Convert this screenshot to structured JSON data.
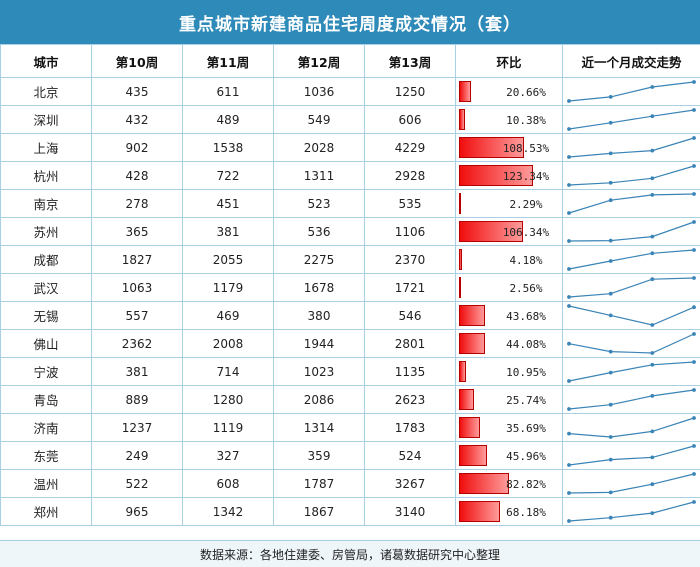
{
  "title": "重点城市新建商品住宅周度成交情况（套）",
  "footer": "数据来源：各地住建委、房管局，诸葛数据研究中心整理",
  "colors": {
    "header": "#2e8ab8",
    "bar": "#f00e0e",
    "spark": "#3a84b6",
    "grid": "#a9cfe3"
  },
  "chart_data": {
    "type": "table",
    "columns": [
      "城市",
      "第10周",
      "第11周",
      "第12周",
      "第13周",
      "环比",
      "近一个月成交走势"
    ],
    "rows": [
      {
        "city": "北京",
        "w10": 435,
        "w11": 611,
        "w12": 1036,
        "w13": 1250,
        "chg": "20.66%"
      },
      {
        "city": "深圳",
        "w10": 432,
        "w11": 489,
        "w12": 549,
        "w13": 606,
        "chg": "10.38%"
      },
      {
        "city": "上海",
        "w10": 902,
        "w11": 1538,
        "w12": 2028,
        "w13": 4229,
        "chg": "108.53%"
      },
      {
        "city": "杭州",
        "w10": 428,
        "w11": 722,
        "w12": 1311,
        "w13": 2928,
        "chg": "123.34%"
      },
      {
        "city": "南京",
        "w10": 278,
        "w11": 451,
        "w12": 523,
        "w13": 535,
        "chg": "2.29%"
      },
      {
        "city": "苏州",
        "w10": 365,
        "w11": 381,
        "w12": 536,
        "w13": 1106,
        "chg": "106.34%"
      },
      {
        "city": "成都",
        "w10": 1827,
        "w11": 2055,
        "w12": 2275,
        "w13": 2370,
        "chg": "4.18%"
      },
      {
        "city": "武汉",
        "w10": 1063,
        "w11": 1179,
        "w12": 1678,
        "w13": 1721,
        "chg": "2.56%"
      },
      {
        "city": "无锡",
        "w10": 557,
        "w11": 469,
        "w12": 380,
        "w13": 546,
        "chg": "43.68%"
      },
      {
        "city": "佛山",
        "w10": 2362,
        "w11": 2008,
        "w12": 1944,
        "w13": 2801,
        "chg": "44.08%"
      },
      {
        "city": "宁波",
        "w10": 381,
        "w11": 714,
        "w12": 1023,
        "w13": 1135,
        "chg": "10.95%"
      },
      {
        "city": "青岛",
        "w10": 889,
        "w11": 1280,
        "w12": 2086,
        "w13": 2623,
        "chg": "25.74%"
      },
      {
        "city": "济南",
        "w10": 1237,
        "w11": 1119,
        "w12": 1314,
        "w13": 1783,
        "chg": "35.69%"
      },
      {
        "city": "东莞",
        "w10": 249,
        "w11": 327,
        "w12": 359,
        "w13": 524,
        "chg": "45.96%"
      },
      {
        "city": "温州",
        "w10": 522,
        "w11": 608,
        "w12": 1787,
        "w13": 3267,
        "chg": "82.82%"
      },
      {
        "city": "郑州",
        "w10": 965,
        "w11": 1342,
        "w12": 1867,
        "w13": 3140,
        "chg": "68.18%"
      }
    ]
  }
}
